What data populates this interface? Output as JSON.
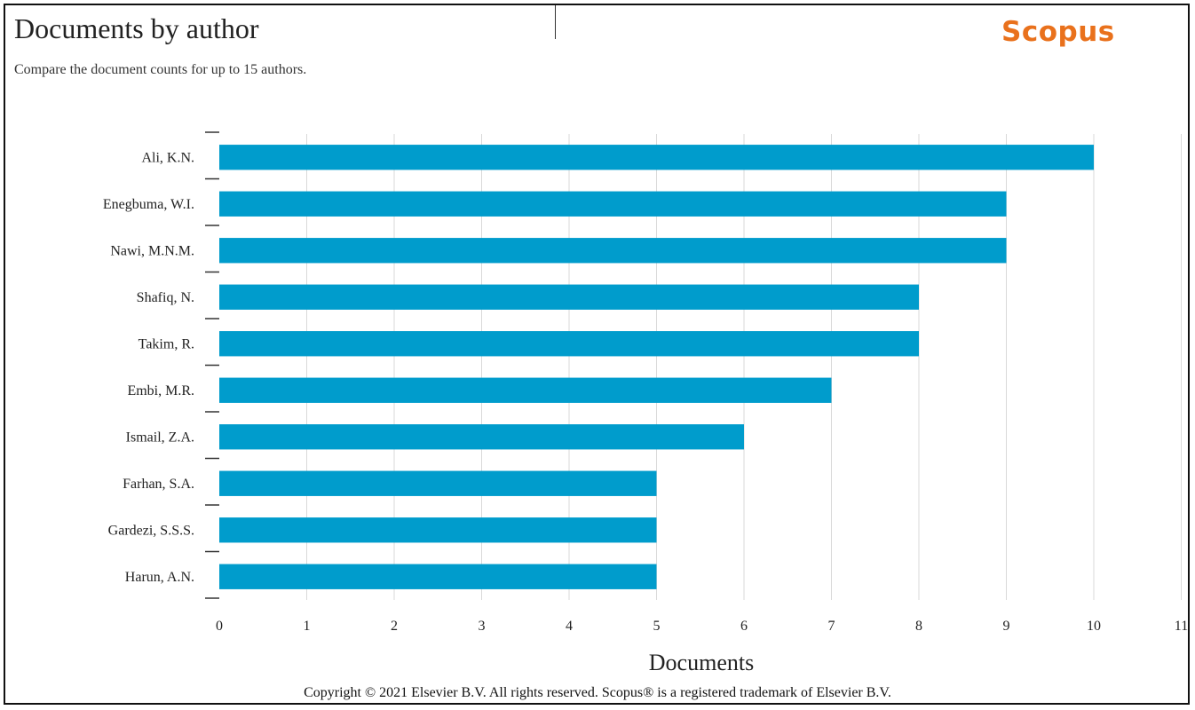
{
  "header": {
    "title": "Documents by author",
    "subtitle": "Compare the document counts for up to 15 authors.",
    "logo_text": "Scopus"
  },
  "footer": {
    "copyright": "Copyright © 2021 Elsevier B.V. All rights reserved. Scopus® is a registered trademark of Elsevier B.V."
  },
  "colors": {
    "bar": "#009ccc",
    "logo": "#e9711c",
    "gridline": "#d9d9d9",
    "axis": "#333333"
  },
  "chart_data": {
    "type": "bar",
    "orientation": "horizontal",
    "categories": [
      "Ali, K.N.",
      "Enegbuma, W.I.",
      "Nawi, M.N.M.",
      "Shafiq, N.",
      "Takim, R.",
      "Embi, M.R.",
      "Ismail, Z.A.",
      "Farhan, S.A.",
      "Gardezi, S.S.S.",
      "Harun, A.N."
    ],
    "values": [
      10,
      9,
      9,
      8,
      8,
      7,
      6,
      5,
      5,
      5
    ],
    "xlabel": "Documents",
    "ylabel": "",
    "xlim": [
      0,
      11
    ],
    "xticks": [
      0,
      1,
      2,
      3,
      4,
      5,
      6,
      7,
      8,
      9,
      10,
      11
    ],
    "grid": true,
    "legend": "none"
  }
}
